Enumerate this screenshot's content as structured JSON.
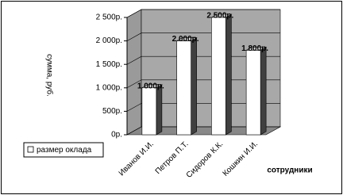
{
  "chart_data": {
    "type": "bar3d",
    "y_label": "сумма, руб.",
    "x_label": "сотрудники",
    "categories": [
      "Иванов И.И.",
      "Петров П.Т.",
      "Сидоров К.К.",
      "Кошкин И.И."
    ],
    "series": [
      {
        "name": "размер оклада",
        "color": "#ffffff",
        "values": [
          1000,
          2000,
          2500,
          1800
        ],
        "value_labels": [
          "1 000р.",
          "2 000р.",
          "2 500р.",
          "1 800р."
        ]
      }
    ],
    "ylim": [
      0,
      2500
    ],
    "yticks": [
      {
        "value": 0,
        "label": "0р."
      },
      {
        "value": 500,
        "label": "500р."
      },
      {
        "value": 1000,
        "label": "1 000р."
      },
      {
        "value": 1500,
        "label": "1 500р."
      },
      {
        "value": 2000,
        "label": "2 000р."
      },
      {
        "value": 2500,
        "label": "2 500р."
      }
    ],
    "grid": true
  }
}
